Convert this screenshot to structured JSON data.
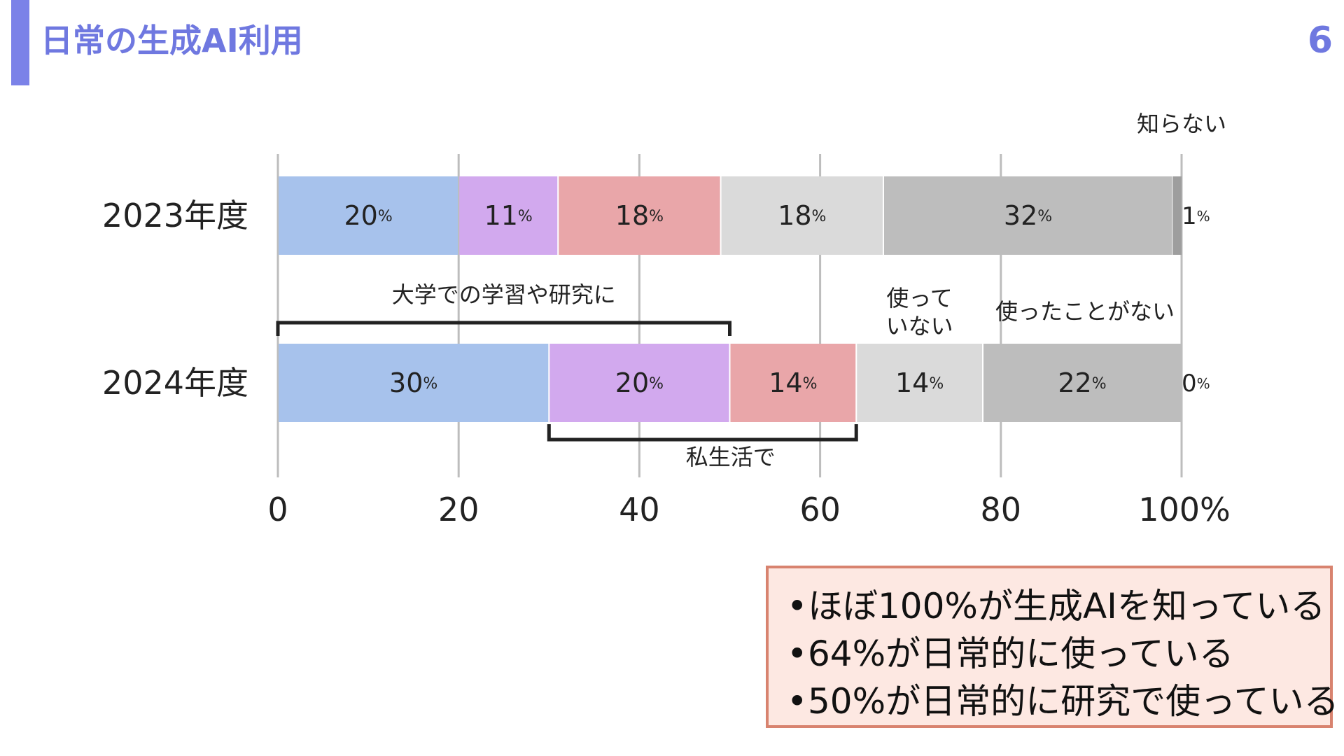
{
  "slide": {
    "title": "日常の生成AI利用",
    "page_number": "6",
    "accent_color": "#7b82e8",
    "title_color": "#6f78e0"
  },
  "chart_data": {
    "type": "bar",
    "orientation": "horizontal",
    "stacked": true,
    "categories": [
      "2023年度",
      "2024年度"
    ],
    "series": [
      {
        "name": "大学での学習や研究に",
        "color": "#a7c2ec",
        "values": [
          20,
          30
        ]
      },
      {
        "name": "私生活で",
        "color": "#d2a9ee",
        "values": [
          11,
          20
        ]
      },
      {
        "name": "",
        "color": "#e9a6a9",
        "values": [
          18,
          14
        ]
      },
      {
        "name": "使っていない",
        "color": "#dadada",
        "values": [
          18,
          14
        ]
      },
      {
        "name": "使ったことがない",
        "color": "#bdbdbd",
        "values": [
          32,
          22
        ]
      },
      {
        "name": "知らない",
        "color": "#9e9e9e",
        "values": [
          1,
          0
        ]
      }
    ],
    "value_suffix": "%",
    "xlim": [
      0,
      100
    ],
    "x_ticks": [
      "0",
      "20",
      "40",
      "60",
      "80",
      "100%"
    ],
    "grid": true,
    "annotations": {
      "university_bracket": "大学での学習や研究に",
      "private_bracket": "私生活で",
      "not_using": [
        "使って",
        "いない"
      ],
      "never_used": "使ったことがない",
      "unknown": "知らない"
    }
  },
  "summary": {
    "bullet": "•",
    "items": [
      "ほぼ100%が生成AIを知っている",
      "64%が日常的に使っている",
      "50%が日常的に研究で使っている"
    ],
    "background": "#fde8e2",
    "border": "#d8836f"
  }
}
